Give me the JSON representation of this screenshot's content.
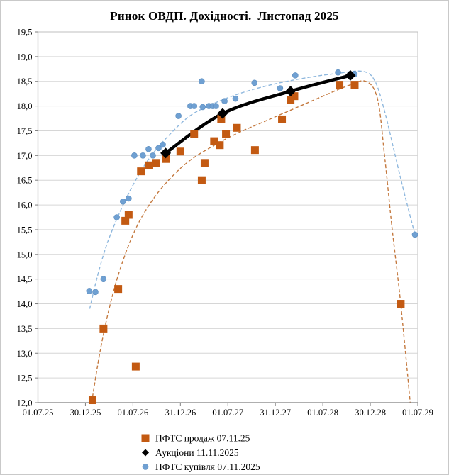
{
  "title": "Ринок ОВДП. Дохідності.  Листопад 2025",
  "colors": {
    "sell": "#c35a12",
    "sell_trend": "#c4793f",
    "auction": "#000000",
    "buy": "#6fa0d2",
    "buy_trend": "#8fb8de",
    "grid": "#d6d6d6",
    "plot_border": "#bfbfbf",
    "axis": "#7f7f7f",
    "tick_text": "#000000"
  },
  "chart_data": {
    "type": "scatter",
    "title": "Ринок ОВДП. Дохідності.  Листопад 2025",
    "x_unit": "half-year index, 0 = 01.07.25, 8 = 01.07.29",
    "x_axis": {
      "tick_labels": [
        "01.07.25",
        "30.12.25",
        "01.07.26",
        "31.12.26",
        "01.07.27",
        "31.12.27",
        "01.07.28",
        "30.12.28",
        "01.07.29"
      ],
      "range": [
        0,
        8
      ],
      "grid": false
    },
    "y_axis": {
      "min": 12.0,
      "max": 19.5,
      "step": 0.5,
      "tick_labels": [
        "12,0",
        "12,5",
        "13,0",
        "13,5",
        "14,0",
        "14,5",
        "15,0",
        "15,5",
        "16,0",
        "16,5",
        "17,0",
        "17,5",
        "18,0",
        "18,5",
        "19,0",
        "19,5"
      ],
      "grid": true
    },
    "series": [
      {
        "name": "ПФТС продаж 07.11.25",
        "marker": "square",
        "color_key": "sell",
        "points": [
          [
            1.15,
            12.05
          ],
          [
            1.38,
            13.5
          ],
          [
            1.69,
            14.3
          ],
          [
            1.84,
            15.68
          ],
          [
            1.91,
            15.8
          ],
          [
            2.06,
            12.73
          ],
          [
            2.17,
            16.68
          ],
          [
            2.33,
            16.8
          ],
          [
            2.48,
            16.85
          ],
          [
            2.69,
            16.93
          ],
          [
            3.0,
            17.08
          ],
          [
            3.29,
            17.43
          ],
          [
            3.45,
            16.5
          ],
          [
            3.51,
            16.85
          ],
          [
            3.71,
            17.29
          ],
          [
            3.83,
            17.21
          ],
          [
            3.86,
            17.74
          ],
          [
            3.96,
            17.43
          ],
          [
            4.19,
            17.56
          ],
          [
            4.57,
            17.11
          ],
          [
            5.14,
            17.73
          ],
          [
            5.32,
            18.13
          ],
          [
            5.4,
            18.2
          ],
          [
            6.35,
            18.43
          ],
          [
            6.67,
            18.43
          ],
          [
            7.64,
            14.0
          ]
        ]
      },
      {
        "name": "Аукціони 11.11.2025",
        "marker": "diamond",
        "color_key": "auction",
        "line": true,
        "points": [
          [
            2.69,
            17.05
          ],
          [
            3.89,
            17.85
          ],
          [
            5.32,
            18.3
          ],
          [
            6.58,
            18.62
          ]
        ]
      },
      {
        "name": "ПФТС купівля 07.11.2025",
        "marker": "circle",
        "color_key": "buy",
        "points": [
          [
            1.08,
            14.26
          ],
          [
            1.21,
            14.24
          ],
          [
            1.38,
            14.5
          ],
          [
            1.66,
            15.75
          ],
          [
            1.79,
            16.07
          ],
          [
            1.91,
            16.13
          ],
          [
            2.03,
            17.0
          ],
          [
            2.21,
            17.0
          ],
          [
            2.33,
            17.13
          ],
          [
            2.42,
            17.0
          ],
          [
            2.54,
            17.15
          ],
          [
            2.63,
            17.22
          ],
          [
            2.96,
            17.8
          ],
          [
            3.21,
            18.0
          ],
          [
            3.29,
            18.0
          ],
          [
            3.45,
            18.5
          ],
          [
            3.47,
            17.98
          ],
          [
            3.6,
            18.0
          ],
          [
            3.68,
            18.0
          ],
          [
            3.75,
            18.0
          ],
          [
            3.93,
            18.1
          ],
          [
            4.16,
            18.15
          ],
          [
            4.56,
            18.47
          ],
          [
            5.1,
            18.36
          ],
          [
            5.42,
            18.62
          ],
          [
            6.32,
            18.68
          ],
          [
            6.67,
            18.65
          ],
          [
            7.94,
            15.4
          ]
        ]
      }
    ],
    "trend_lines": [
      {
        "series": "ПФТС купівля 07.11.2025",
        "style": "dashed",
        "color_key": "buy_trend",
        "points": [
          [
            1.09,
            13.9
          ],
          [
            1.25,
            14.55
          ],
          [
            1.45,
            15.2
          ],
          [
            1.7,
            15.8
          ],
          [
            2.0,
            16.4
          ],
          [
            2.35,
            16.95
          ],
          [
            2.75,
            17.4
          ],
          [
            3.2,
            17.8
          ],
          [
            3.7,
            18.05
          ],
          [
            4.3,
            18.27
          ],
          [
            5.0,
            18.45
          ],
          [
            5.7,
            18.58
          ],
          [
            6.3,
            18.66
          ],
          [
            6.85,
            18.7
          ],
          [
            7.1,
            18.5
          ],
          [
            7.3,
            17.9
          ],
          [
            7.5,
            17.1
          ],
          [
            7.7,
            16.3
          ],
          [
            7.94,
            15.4
          ]
        ]
      },
      {
        "series": "ПФТС продаж 07.11.25",
        "style": "dashed",
        "color_key": "sell_trend",
        "points": [
          [
            1.13,
            12.0
          ],
          [
            1.32,
            13.1
          ],
          [
            1.55,
            14.1
          ],
          [
            1.8,
            14.9
          ],
          [
            2.1,
            15.6
          ],
          [
            2.45,
            16.15
          ],
          [
            2.8,
            16.55
          ],
          [
            3.2,
            16.9
          ],
          [
            3.7,
            17.2
          ],
          [
            4.2,
            17.45
          ],
          [
            4.8,
            17.7
          ],
          [
            5.4,
            17.95
          ],
          [
            6.0,
            18.2
          ],
          [
            6.5,
            18.4
          ],
          [
            6.9,
            18.5
          ],
          [
            7.15,
            18.15
          ],
          [
            7.3,
            17.0
          ],
          [
            7.45,
            15.6
          ],
          [
            7.64,
            14.0
          ],
          [
            7.84,
            12.0
          ]
        ]
      }
    ],
    "legend_position": "bottom"
  },
  "legend": {
    "items": [
      {
        "label": "ПФТС продаж 07.11.25",
        "marker": "square",
        "color_key": "sell"
      },
      {
        "label": "Аукціони 11.11.2025",
        "marker": "diamond",
        "color_key": "auction"
      },
      {
        "label": "ПФТС купівля 07.11.2025",
        "marker": "circle",
        "color_key": "buy"
      }
    ]
  }
}
